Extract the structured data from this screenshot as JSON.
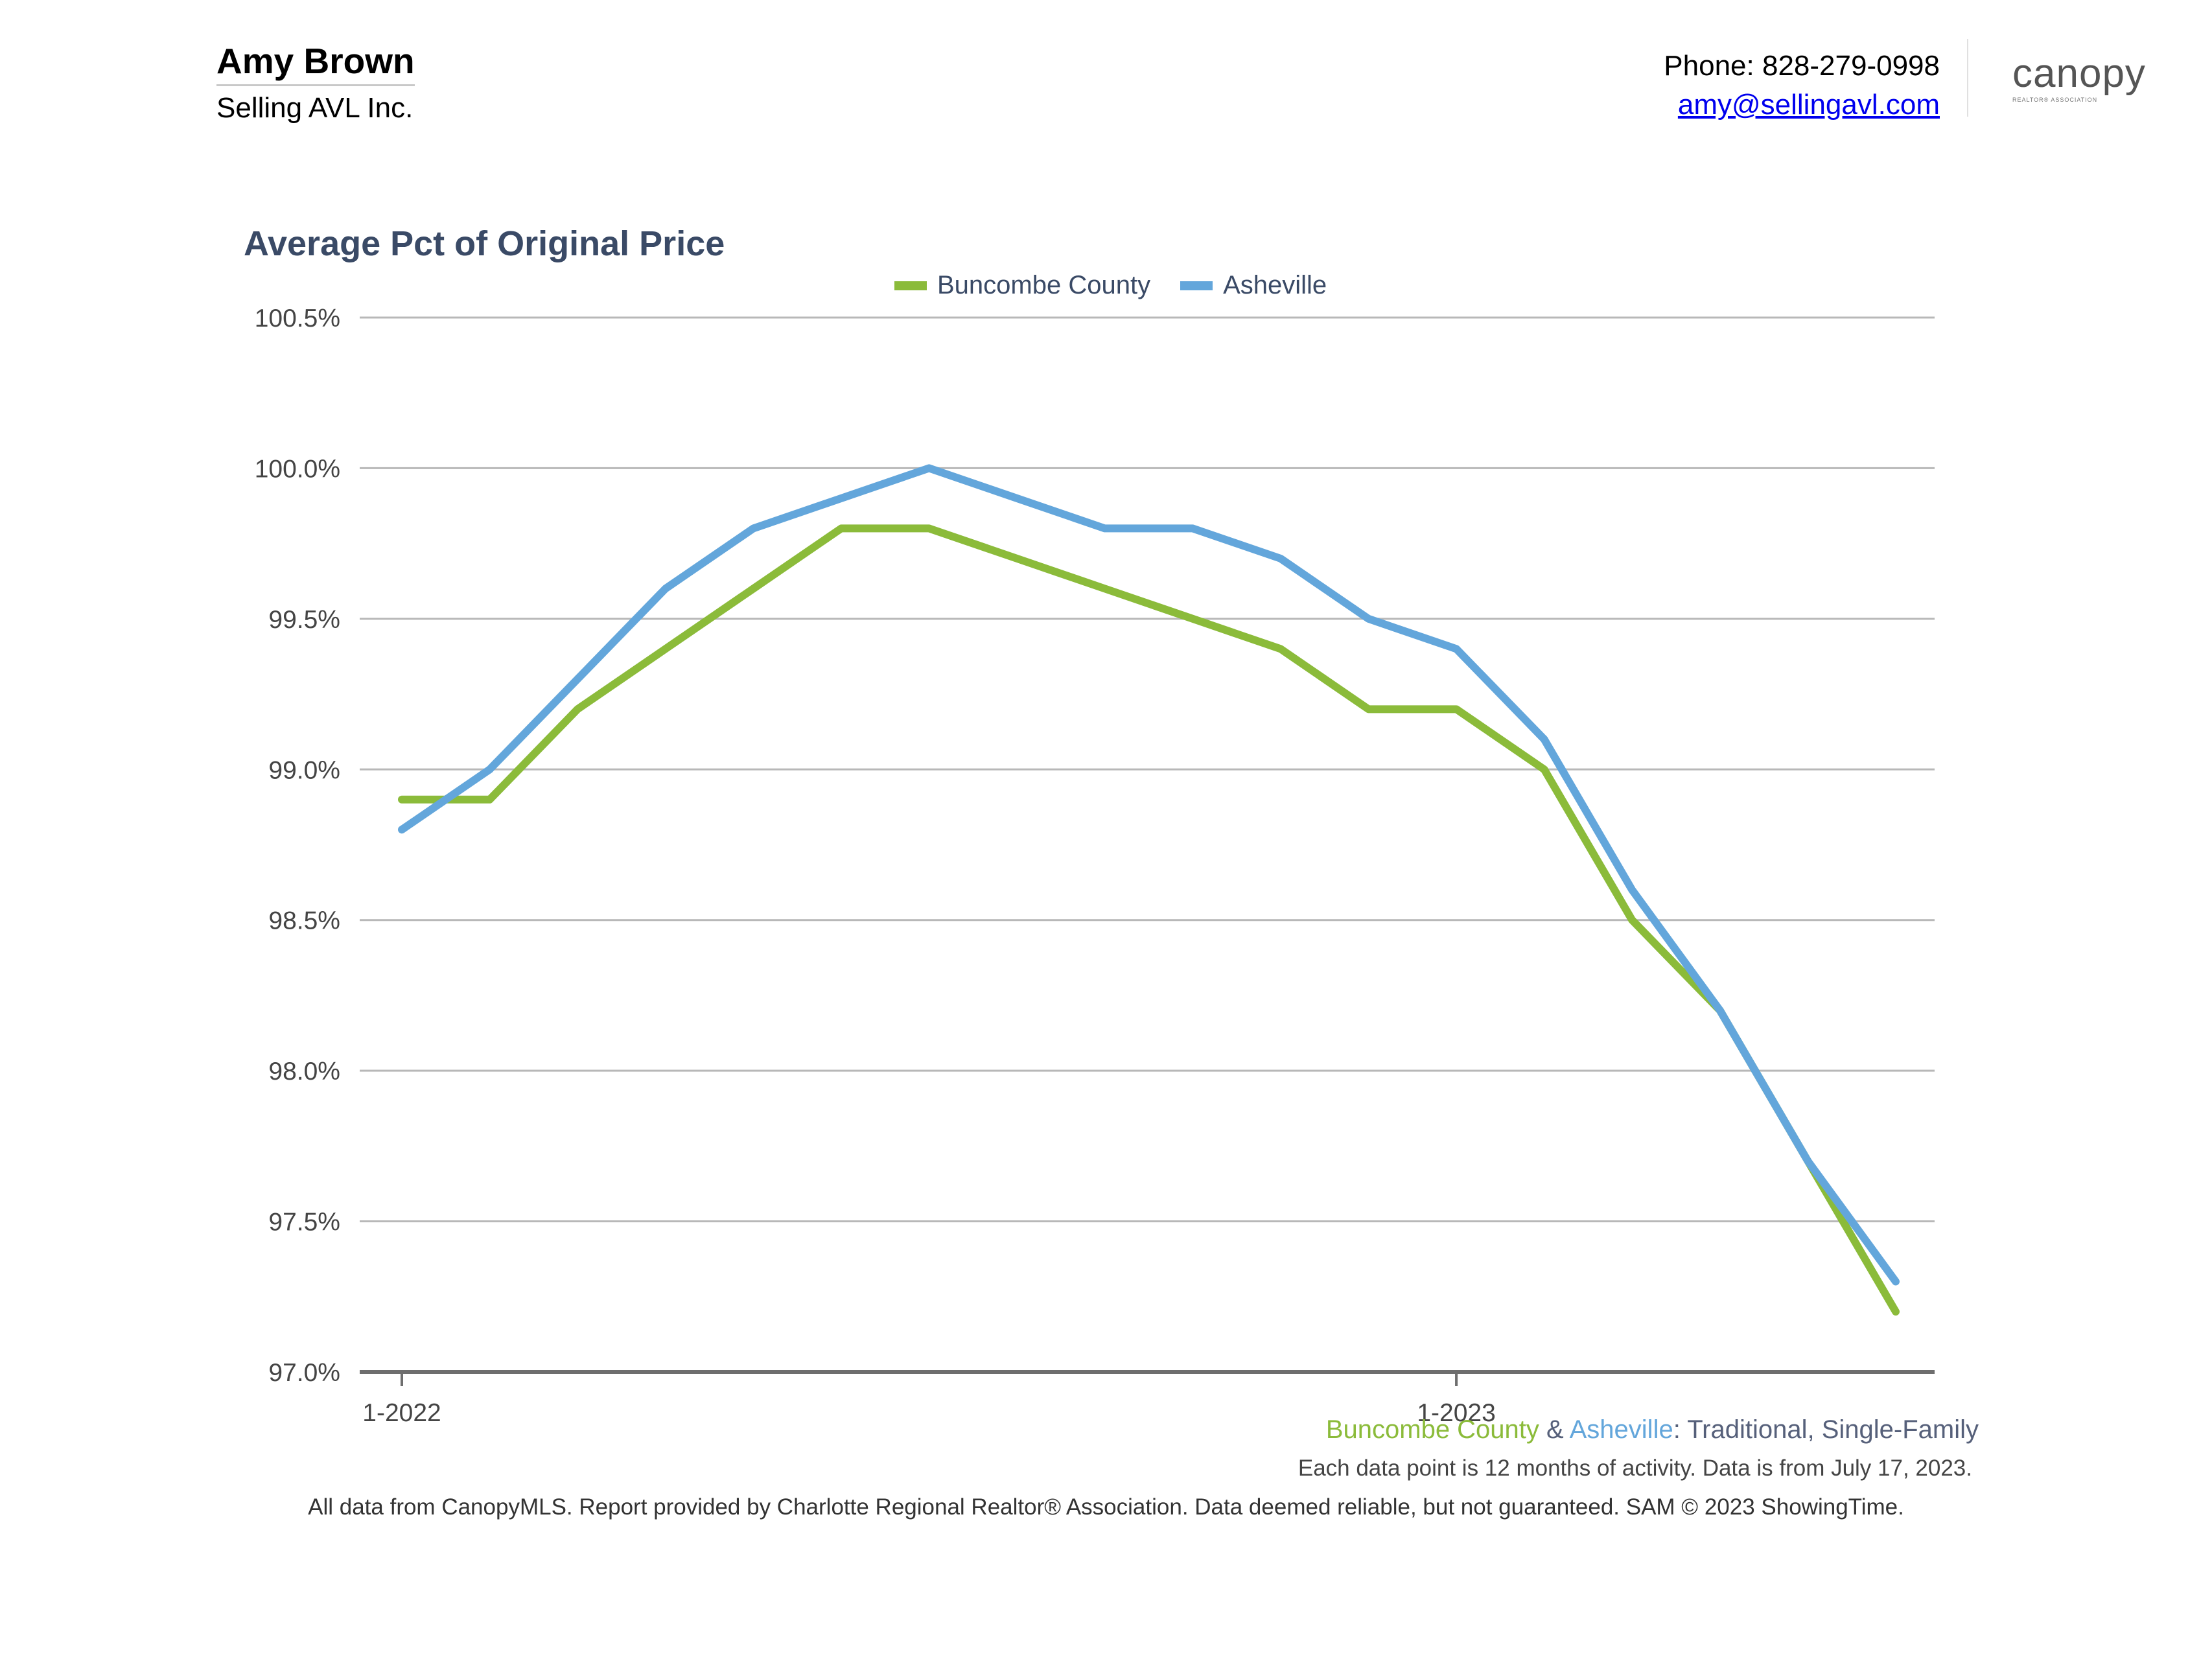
{
  "header": {
    "agent_name": "Amy Brown",
    "company": "Selling AVL Inc.",
    "phone": "Phone: 828-279-0998",
    "email": "amy@sellingavl.com",
    "logo_text": "canopy",
    "logo_subtext": "REALTOR® ASSOCIATION"
  },
  "chart_data": {
    "type": "line",
    "title": "Average Pct of Original Price",
    "ylim": [
      97.0,
      100.5
    ],
    "yticks": [
      97.0,
      97.5,
      98.0,
      98.5,
      99.0,
      99.5,
      100.0,
      100.5
    ],
    "ytick_labels": [
      "97.0%",
      "97.5%",
      "98.0%",
      "98.5%",
      "99.0%",
      "99.5%",
      "100.0%",
      "100.5%"
    ],
    "x": [
      "1-2022",
      "2-2022",
      "3-2022",
      "4-2022",
      "5-2022",
      "6-2022",
      "7-2022",
      "8-2022",
      "9-2022",
      "10-2022",
      "11-2022",
      "12-2022",
      "1-2023",
      "2-2023",
      "3-2023",
      "4-2023",
      "5-2023",
      "6-2023"
    ],
    "xtick_labels": [
      {
        "index": 0,
        "label": "1-2022"
      },
      {
        "index": 12,
        "label": "1-2023"
      }
    ],
    "grid": true,
    "legend_position": "top-center",
    "series": [
      {
        "name": "Buncombe County",
        "color": "#8bbb3a",
        "values": [
          98.9,
          98.9,
          99.2,
          99.4,
          99.6,
          99.8,
          99.8,
          99.7,
          99.6,
          99.5,
          99.4,
          99.2,
          99.2,
          99.0,
          98.5,
          98.2,
          97.7,
          97.2
        ]
      },
      {
        "name": "Asheville",
        "color": "#63a6db",
        "values": [
          98.8,
          99.0,
          99.3,
          99.6,
          99.8,
          99.9,
          100.0,
          99.9,
          99.8,
          99.8,
          99.7,
          99.5,
          99.4,
          99.1,
          98.6,
          98.2,
          97.7,
          97.3
        ]
      }
    ]
  },
  "subtitle": {
    "series1": "Buncombe County",
    "amp": " & ",
    "series2": "Asheville",
    "rest": ": Traditional, Single-Family",
    "series1_color": "#8bbb3a",
    "series2_color": "#63a6db",
    "rest_color": "#56607a"
  },
  "note": "Each data point is 12 months of activity. Data is from July 17, 2023.",
  "footer": "All data from CanopyMLS. Report provided by Charlotte Regional Realtor® Association. Data deemed reliable, but not guaranteed. SAM © 2023 ShowingTime."
}
